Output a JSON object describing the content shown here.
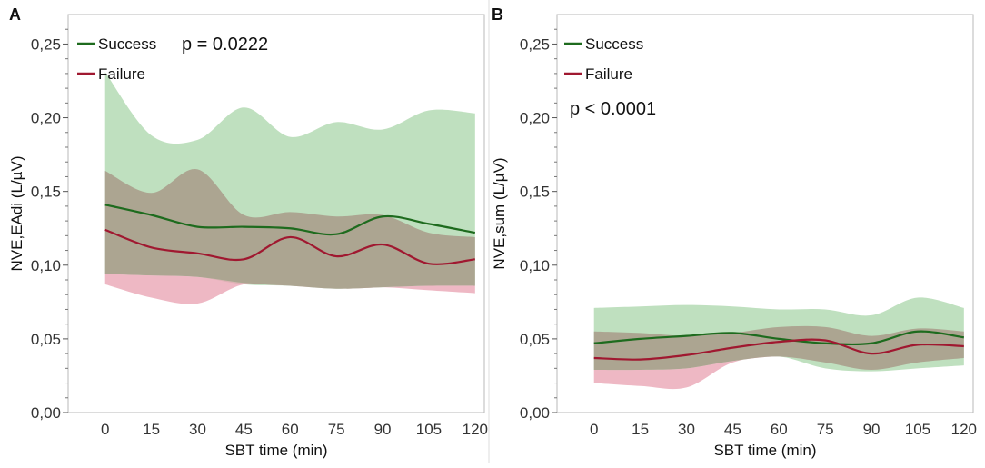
{
  "colors": {
    "success_line": "#1e6b1e",
    "failure_line": "#a01830",
    "success_band": "#a9d5a9",
    "failure_band": "#e8a0b0",
    "overlap_band": "#a89a88",
    "frame": "#b8b8b8",
    "tick_label": "#333333",
    "background": "#ffffff"
  },
  "chart_data": [
    {
      "type": "line",
      "panel_label": "A",
      "xlabel": "SBT time  (min)",
      "ylabel": "NVE,EAdi (L/µV)",
      "ylim": [
        0,
        0.27
      ],
      "xlim": [
        -12,
        123
      ],
      "yticks": [
        0,
        0.05,
        0.1,
        0.15,
        0.2,
        0.25
      ],
      "ytick_labels": [
        "0,00",
        "0,05",
        "0,10",
        "0,15",
        "0,20",
        "0,25"
      ],
      "xticks": [
        0,
        15,
        30,
        45,
        60,
        75,
        90,
        105,
        120
      ],
      "xtick_labels": [
        "0",
        "15",
        "30",
        "45",
        "60",
        "75",
        "90",
        "105",
        "120"
      ],
      "legend": [
        "Success",
        "Failure"
      ],
      "annotation": "p = 0.0222",
      "x": [
        0,
        15,
        30,
        45,
        60,
        75,
        90,
        105,
        120
      ],
      "series": [
        {
          "name": "Success",
          "values": [
            0.141,
            0.134,
            0.126,
            0.126,
            0.125,
            0.121,
            0.133,
            0.128,
            0.122
          ],
          "band_upper": [
            0.231,
            0.188,
            0.185,
            0.207,
            0.187,
            0.197,
            0.192,
            0.205,
            0.203
          ],
          "band_lower": [
            0.094,
            0.093,
            0.092,
            0.087,
            0.086,
            0.084,
            0.085,
            0.086,
            0.086
          ]
        },
        {
          "name": "Failure",
          "values": [
            0.124,
            0.112,
            0.108,
            0.104,
            0.119,
            0.106,
            0.114,
            0.101,
            0.104
          ]
        }
      ],
      "overlap_band": {
        "upper": [
          0.164,
          0.149,
          0.165,
          0.134,
          0.136,
          0.133,
          0.134,
          0.122,
          0.119
        ],
        "lower": [
          0.094,
          0.093,
          0.092,
          0.088,
          0.086,
          0.084,
          0.085,
          0.086,
          0.086
        ]
      },
      "failure_only_band": {
        "upper": [
          0.094,
          0.093,
          0.092,
          0.088,
          0.086,
          0.084,
          0.085,
          0.086,
          0.086
        ],
        "lower": [
          0.087,
          0.078,
          0.074,
          0.087,
          0.086,
          0.084,
          0.085,
          0.083,
          0.081
        ]
      }
    },
    {
      "type": "line",
      "panel_label": "B",
      "xlabel": "SBT time  (min)",
      "ylabel": "NVE,sum (L/µV)",
      "ylim": [
        0,
        0.27
      ],
      "xlim": [
        -12,
        123
      ],
      "yticks": [
        0,
        0.05,
        0.1,
        0.15,
        0.2,
        0.25
      ],
      "ytick_labels": [
        "0,00",
        "0,05",
        "0,10",
        "0,15",
        "0,20",
        "0,25"
      ],
      "xticks": [
        0,
        15,
        30,
        45,
        60,
        75,
        90,
        105,
        120
      ],
      "xtick_labels": [
        "0",
        "15",
        "30",
        "45",
        "60",
        "75",
        "90",
        "105",
        "120"
      ],
      "legend": [
        "Success",
        "Failure"
      ],
      "annotation": "p < 0.0001",
      "x": [
        0,
        15,
        30,
        45,
        60,
        75,
        90,
        105,
        120
      ],
      "series": [
        {
          "name": "Success",
          "values": [
            0.047,
            0.05,
            0.052,
            0.054,
            0.05,
            0.047,
            0.047,
            0.055,
            0.051
          ],
          "band_upper": [
            0.071,
            0.072,
            0.073,
            0.072,
            0.07,
            0.07,
            0.066,
            0.078,
            0.071
          ],
          "band_lower": [
            0.029,
            0.029,
            0.03,
            0.035,
            0.038,
            0.03,
            0.028,
            0.03,
            0.032
          ]
        },
        {
          "name": "Failure",
          "values": [
            0.037,
            0.036,
            0.039,
            0.044,
            0.048,
            0.049,
            0.04,
            0.046,
            0.045
          ]
        }
      ],
      "overlap_band": {
        "upper": [
          0.055,
          0.054,
          0.052,
          0.054,
          0.058,
          0.058,
          0.052,
          0.057,
          0.055
        ],
        "lower": [
          0.029,
          0.029,
          0.03,
          0.035,
          0.038,
          0.034,
          0.029,
          0.034,
          0.037
        ]
      },
      "failure_only_band": {
        "upper": [
          0.029,
          0.029,
          0.03,
          0.035,
          0.038,
          0.034,
          0.029,
          0.034,
          0.037
        ],
        "lower": [
          0.02,
          0.018,
          0.017,
          0.034,
          0.038,
          0.034,
          0.029,
          0.034,
          0.037
        ]
      }
    }
  ]
}
